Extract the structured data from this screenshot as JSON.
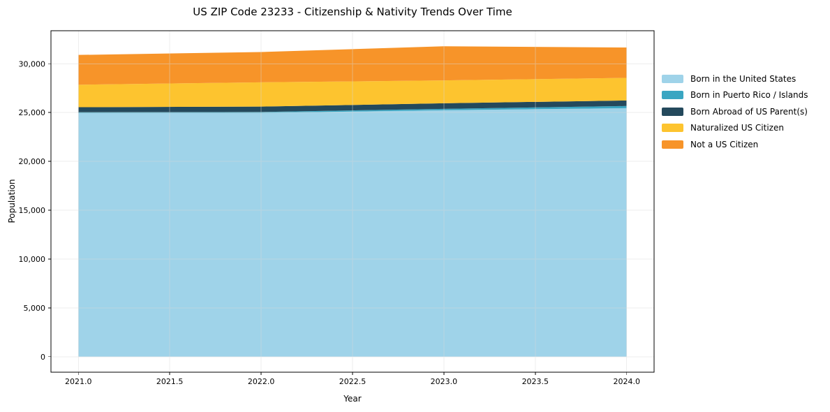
{
  "figure": {
    "title": "US ZIP Code 23233 - Citizenship & Nativity Trends Over Time",
    "background": "#ffffff"
  },
  "chart_data": {
    "type": "area",
    "stacked": true,
    "title": "US ZIP Code 23233 - Citizenship & Nativity Trends Over Time",
    "xlabel": "Year",
    "ylabel": "Population",
    "x": [
      2021,
      2022,
      2023,
      2024
    ],
    "series": [
      {
        "name": "Born in the United States",
        "color": "#9fd3e9",
        "values": [
          24950,
          24960,
          25240,
          25450
        ]
      },
      {
        "name": "Born in Puerto Rico / Islands",
        "color": "#3aa6c2",
        "values": [
          70,
          100,
          140,
          220
        ]
      },
      {
        "name": "Born Abroad of US Parent(s)",
        "color": "#24495c",
        "values": [
          530,
          550,
          570,
          570
        ]
      },
      {
        "name": "Naturalized US Citizen",
        "color": "#fdc42f",
        "values": [
          2300,
          2490,
          2340,
          2310
        ]
      },
      {
        "name": "Not a US Citizen",
        "color": "#f79429",
        "values": [
          3050,
          3100,
          3500,
          3110
        ]
      }
    ],
    "stack_totals": [
      30900,
      31200,
      31790,
      31660
    ],
    "xlim": [
      2020.85,
      2024.15
    ],
    "ylim": [
      -1590,
      33380
    ],
    "xticks": [
      2021.0,
      2021.5,
      2022.0,
      2022.5,
      2023.0,
      2023.5,
      2024.0
    ],
    "xtick_labels": [
      "2021.0",
      "2021.5",
      "2022.0",
      "2022.5",
      "2023.0",
      "2023.5",
      "2024.0"
    ],
    "yticks": [
      0,
      5000,
      10000,
      15000,
      20000,
      25000,
      30000
    ],
    "ytick_labels": [
      "0",
      "5,000",
      "10,000",
      "15,000",
      "20,000",
      "25,000",
      "30,000"
    ],
    "grid": true,
    "legend_position": "right-outside",
    "axis_color": "#000000",
    "grid_color": "#d9d9d9"
  }
}
